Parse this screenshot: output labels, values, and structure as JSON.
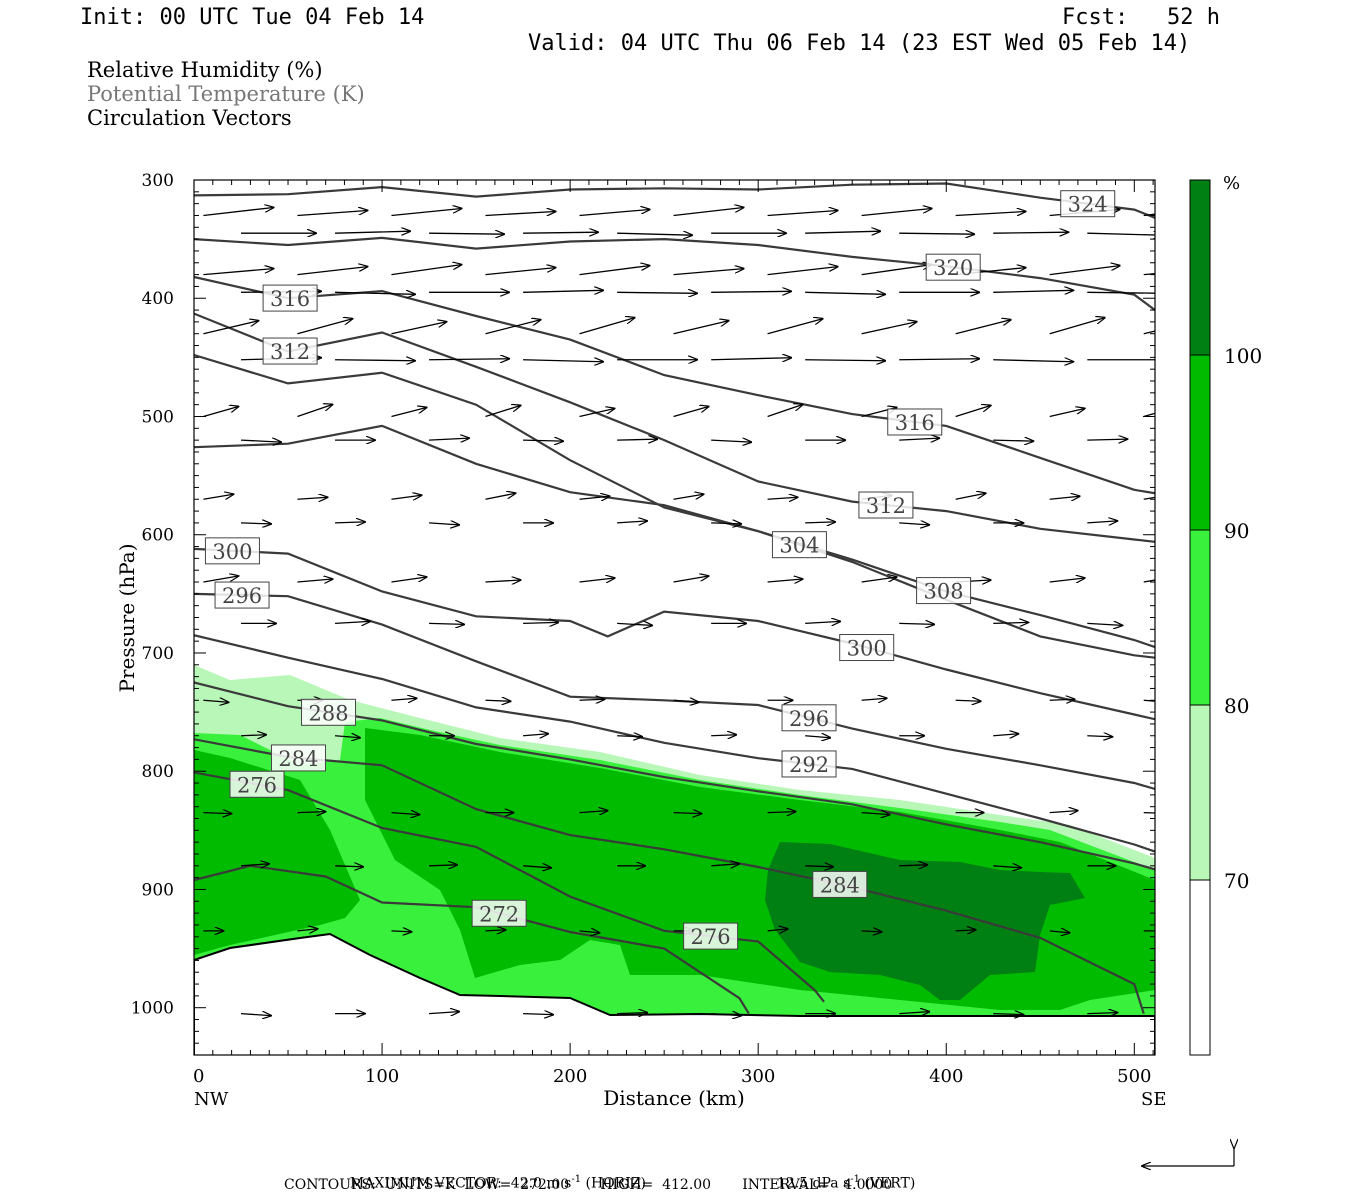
{
  "header": {
    "init": "Init: 00 UTC Tue 04 Feb 14",
    "fcst_label": "Fcst:",
    "fcst_value": "52 h",
    "valid": "Valid: 04 UTC Thu 06 Feb 14 (23 EST Wed 05 Feb 14)"
  },
  "legend": {
    "line1": "Relative Humidity (%)",
    "line2": "Potential Temperature (K)",
    "line3": "Circulation Vectors"
  },
  "colors": {
    "rh_70_80": "#b9f7b9",
    "rh_80_90": "#39f03c",
    "rh_90_100": "#00bb00",
    "rh_100": "#007f12",
    "contour": "#3a3a3a"
  },
  "chart_data": {
    "type": "cross-section",
    "xlabel": "Distance (km)",
    "ylabel": "Pressure (hPa)",
    "xlim": [
      0,
      511
    ],
    "ylim": [
      1040,
      300
    ],
    "x_ticks": [
      "0",
      "100",
      "200",
      "300",
      "400",
      "500"
    ],
    "y_ticks": [
      "300",
      "400",
      "500",
      "600",
      "700",
      "800",
      "900",
      "1000"
    ],
    "left_end_label": "NW",
    "right_end_label": "SE",
    "colorbar": {
      "unit": "%",
      "levels": [
        "70",
        "80",
        "90",
        "100"
      ]
    },
    "theta_contours": [
      {
        "label": "324",
        "points": [
          [
            0,
            313
          ],
          [
            50,
            312
          ],
          [
            100,
            306
          ],
          [
            150,
            314
          ],
          [
            200,
            308
          ],
          [
            250,
            307
          ],
          [
            300,
            308
          ],
          [
            350,
            304
          ],
          [
            400,
            303
          ],
          [
            450,
            315
          ],
          [
            500,
            325
          ],
          [
            511,
            332
          ]
        ]
      },
      {
        "label": "320",
        "points": [
          [
            0,
            350
          ],
          [
            50,
            355
          ],
          [
            100,
            349
          ],
          [
            150,
            358
          ],
          [
            200,
            352
          ],
          [
            250,
            350
          ],
          [
            300,
            355
          ],
          [
            350,
            365
          ],
          [
            400,
            373
          ],
          [
            450,
            383
          ],
          [
            500,
            397
          ],
          [
            511,
            410
          ]
        ]
      },
      {
        "label": "316",
        "points": [
          [
            0,
            382
          ],
          [
            50,
            400
          ],
          [
            100,
            394
          ],
          [
            150,
            415
          ],
          [
            200,
            435
          ],
          [
            250,
            465
          ],
          [
            300,
            482
          ],
          [
            350,
            498
          ],
          [
            400,
            508
          ],
          [
            450,
            535
          ],
          [
            500,
            562
          ],
          [
            511,
            565
          ]
        ]
      },
      {
        "label": "312",
        "points": [
          [
            0,
            413
          ],
          [
            50,
            445
          ],
          [
            100,
            429
          ],
          [
            150,
            458
          ],
          [
            200,
            488
          ],
          [
            250,
            520
          ],
          [
            300,
            555
          ],
          [
            350,
            572
          ],
          [
            400,
            580
          ],
          [
            450,
            595
          ],
          [
            500,
            604
          ],
          [
            511,
            606
          ]
        ]
      },
      {
        "label": "308",
        "points": [
          [
            0,
            448
          ],
          [
            50,
            472
          ],
          [
            100,
            463
          ],
          [
            150,
            490
          ],
          [
            200,
            537
          ],
          [
            250,
            577
          ],
          [
            300,
            597
          ],
          [
            350,
            621
          ],
          [
            400,
            648
          ],
          [
            450,
            668
          ],
          [
            500,
            689
          ],
          [
            511,
            695
          ]
        ]
      },
      {
        "label": "304",
        "points": [
          [
            0,
            526
          ],
          [
            50,
            523
          ],
          [
            100,
            508
          ],
          [
            150,
            540
          ],
          [
            200,
            564
          ],
          [
            250,
            575
          ],
          [
            300,
            597
          ],
          [
            350,
            623
          ],
          [
            400,
            655
          ],
          [
            450,
            686
          ],
          [
            500,
            702
          ],
          [
            511,
            704
          ]
        ]
      },
      {
        "label": "300",
        "points": [
          [
            0,
            612
          ],
          [
            50,
            616
          ],
          [
            100,
            648
          ],
          [
            150,
            669
          ],
          [
            200,
            673
          ],
          [
            220,
            686
          ],
          [
            250,
            665
          ],
          [
            300,
            673
          ],
          [
            350,
            692
          ],
          [
            400,
            714
          ],
          [
            450,
            734
          ],
          [
            500,
            752
          ],
          [
            511,
            756
          ]
        ]
      },
      {
        "label": "296",
        "points": [
          [
            0,
            650
          ],
          [
            50,
            652
          ],
          [
            100,
            676
          ],
          [
            150,
            707
          ],
          [
            200,
            737
          ],
          [
            250,
            740
          ],
          [
            300,
            744
          ],
          [
            350,
            764
          ],
          [
            400,
            781
          ],
          [
            450,
            795
          ],
          [
            500,
            810
          ],
          [
            511,
            815
          ]
        ]
      },
      {
        "label": "292",
        "points": [
          [
            0,
            685
          ],
          [
            50,
            704
          ],
          [
            100,
            722
          ],
          [
            150,
            746
          ],
          [
            200,
            758
          ],
          [
            250,
            776
          ],
          [
            300,
            789
          ],
          [
            350,
            798
          ],
          [
            400,
            819
          ],
          [
            450,
            840
          ],
          [
            500,
            862
          ],
          [
            511,
            868
          ]
        ]
      },
      {
        "label": "288",
        "points": [
          [
            0,
            725
          ],
          [
            50,
            745
          ],
          [
            100,
            757
          ],
          [
            150,
            777
          ],
          [
            200,
            790
          ],
          [
            250,
            805
          ],
          [
            300,
            817
          ],
          [
            350,
            828
          ],
          [
            400,
            845
          ],
          [
            450,
            860
          ],
          [
            500,
            878
          ],
          [
            511,
            883
          ]
        ]
      },
      {
        "label": "284",
        "points": [
          [
            0,
            773
          ],
          [
            50,
            788
          ],
          [
            100,
            795
          ],
          [
            150,
            832
          ],
          [
            200,
            854
          ],
          [
            250,
            866
          ],
          [
            300,
            881
          ],
          [
            350,
            898
          ],
          [
            400,
            918
          ],
          [
            450,
            941
          ],
          [
            500,
            980
          ],
          [
            505,
            1005
          ]
        ]
      },
      {
        "label": "276",
        "points": [
          [
            0,
            801
          ],
          [
            50,
            816
          ],
          [
            100,
            848
          ],
          [
            150,
            864
          ],
          [
            200,
            906
          ],
          [
            250,
            935
          ],
          [
            300,
            944
          ],
          [
            330,
            985
          ],
          [
            335,
            995
          ]
        ]
      },
      {
        "label": "272",
        "points": [
          [
            0,
            892
          ],
          [
            30,
            880
          ],
          [
            70,
            889
          ],
          [
            100,
            911
          ],
          [
            150,
            915
          ],
          [
            200,
            936
          ],
          [
            250,
            950
          ],
          [
            290,
            992
          ],
          [
            295,
            1005
          ]
        ]
      }
    ],
    "vector_maximum": "42.0 m s⁻¹ (HORIZ)  12.5 dPa s⁻¹ (VERT)",
    "contours_note": "CONTOURS:  UNITS=K  LOW=  272.00  HIGH=  412.00  INTERVAL=  4.0000"
  },
  "footer": {
    "max_vector_label": "MAXIMUM VECTOR:  42.0 m s",
    "max_vector_horiz": "(HORIZ)",
    "max_vector_vert": "12.5 dPa s",
    "max_vector_vert_tail": "(VERT)",
    "contours_line": "CONTOURS:  UNITS=K  LOW=  272.00       HIGH=  412.00       INTERVAL=   4.0000"
  }
}
